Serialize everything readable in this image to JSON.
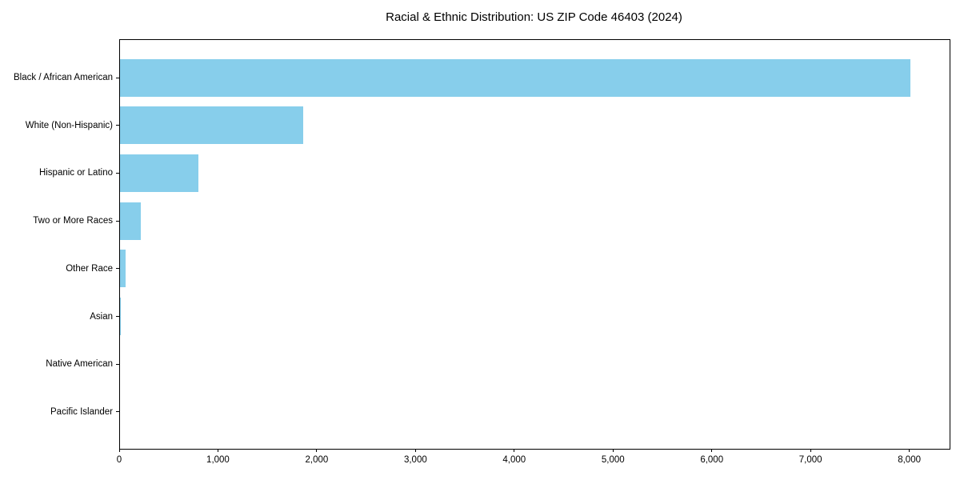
{
  "chart_data": {
    "type": "bar",
    "orientation": "horizontal",
    "title": "Racial & Ethnic Distribution: US ZIP Code 46403 (2024)",
    "categories": [
      "Black / African American",
      "White (Non-Hispanic)",
      "Hispanic or Latino",
      "Two or More Races",
      "Other Race",
      "Asian",
      "Native American",
      "Pacific Islander"
    ],
    "values": [
      8000,
      1855,
      790,
      210,
      57,
      10,
      0,
      0
    ],
    "xlabel": "",
    "ylabel": "",
    "xlim": [
      0,
      8400
    ],
    "x_ticks": [
      0,
      1000,
      2000,
      3000,
      4000,
      5000,
      6000,
      7000,
      8000
    ],
    "x_tick_labels": [
      "0",
      "1,000",
      "2,000",
      "3,000",
      "4,000",
      "5,000",
      "6,000",
      "7,000",
      "8,000"
    ],
    "bar_color": "#87CEEB",
    "axis_color": "#000000",
    "text_color": "#000000",
    "grid": false,
    "legend": "none",
    "background": "#ffffff"
  }
}
